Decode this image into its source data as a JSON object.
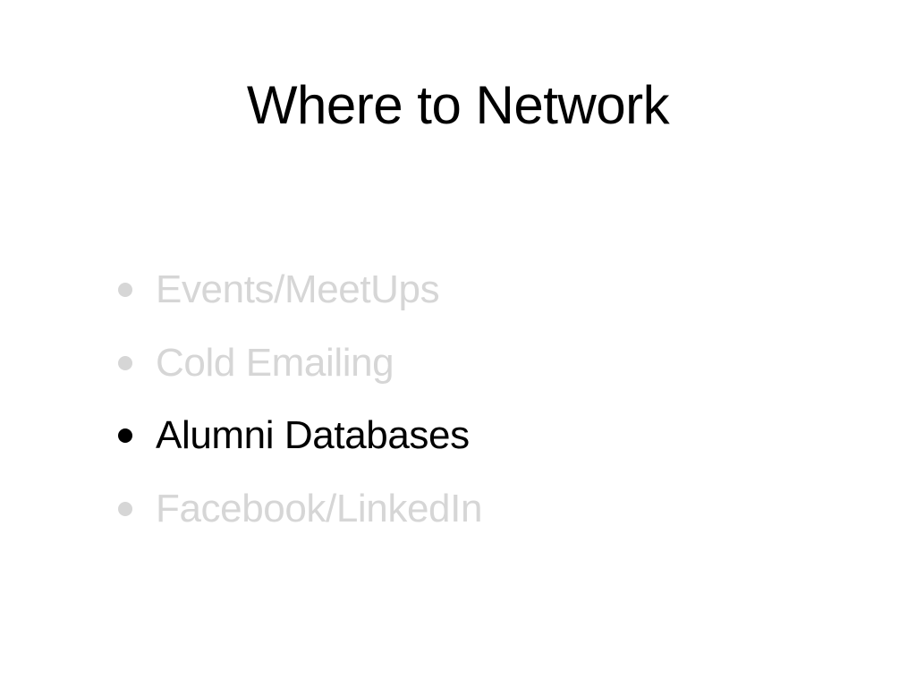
{
  "slide": {
    "title": "Where to Network",
    "bullets": [
      {
        "label": "Events/MeetUps",
        "active": false
      },
      {
        "label": "Cold Emailing",
        "active": false
      },
      {
        "label": "Alumni Databases",
        "active": true
      },
      {
        "label": "Facebook/LinkedIn",
        "active": false
      }
    ]
  },
  "colors": {
    "background": "#ffffff",
    "active_text": "#000000",
    "inactive_text": "#d6d6d6"
  }
}
